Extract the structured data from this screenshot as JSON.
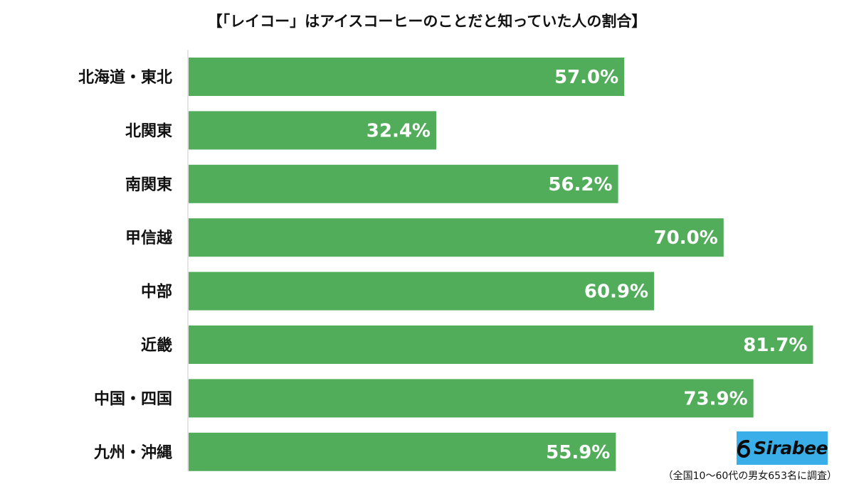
{
  "title": "【「レイコー」はアイスコーヒーのことだと知っていた人の割合】",
  "chart_data": {
    "type": "bar",
    "orientation": "horizontal",
    "categories": [
      "北海道・東北",
      "北関東",
      "南関東",
      "甲信越",
      "中部",
      "近畿",
      "中国・四国",
      "九州・沖縄"
    ],
    "values": [
      57.0,
      32.4,
      56.2,
      70.0,
      60.9,
      81.7,
      73.9,
      55.9
    ],
    "value_labels": [
      "57.0%",
      "32.4%",
      "56.2%",
      "70.0%",
      "60.9%",
      "81.7%",
      "73.9%",
      "55.9%"
    ],
    "xlim": [
      0,
      90
    ],
    "grid": false,
    "bar_color": "#52ad5b"
  },
  "logo": {
    "text": "Sirabee",
    "background": "#3aaee9"
  },
  "footnote": "（全国10〜60代の男女653名に調査）"
}
